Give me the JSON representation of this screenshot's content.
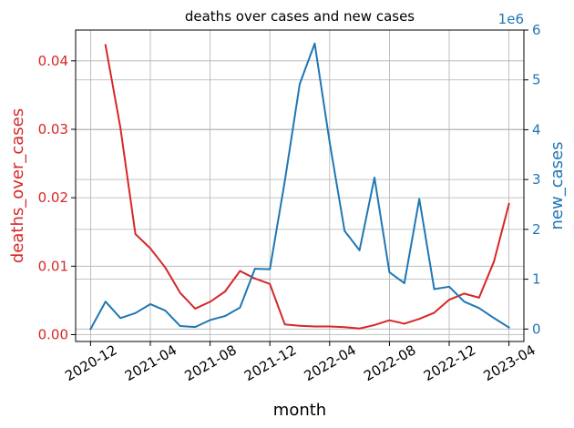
{
  "chart_data": {
    "type": "line",
    "title": "deaths over cases and new cases",
    "xlabel": "month",
    "x_tick_labels": [
      "2020-12",
      "2021-04",
      "2021-08",
      "2021-12",
      "2022-04",
      "2022-08",
      "2022-12",
      "2023-04"
    ],
    "x_tick_values": [
      "2020-12",
      "2021-04",
      "2021-08",
      "2021-12",
      "2022-04",
      "2022-08",
      "2022-12",
      "2023-04"
    ],
    "x_range": [
      "2020-11",
      "2023-05"
    ],
    "grid": true,
    "y_left": {
      "label": "deaths_over_cases",
      "color": "#d62728",
      "ylim": [
        -0.001,
        0.0445
      ],
      "ticks": [
        0.0,
        0.01,
        0.02,
        0.03,
        0.04
      ],
      "tick_labels": [
        "0.00",
        "0.01",
        "0.02",
        "0.03",
        "0.04"
      ]
    },
    "y_right": {
      "label": "new_cases",
      "color": "#1f77b4",
      "ylim": [
        -0.25,
        6.0
      ],
      "ticks": [
        0,
        1,
        2,
        3,
        4,
        5,
        6
      ],
      "tick_labels": [
        "0",
        "1",
        "2",
        "3",
        "4",
        "5",
        "6"
      ],
      "offset_label": "1e6"
    },
    "series": [
      {
        "axis": "left",
        "color": "#d62728",
        "points": [
          [
            "2021-01",
            0.0423
          ],
          [
            "2021-02",
            0.0302
          ],
          [
            "2021-03",
            0.0147
          ],
          [
            "2021-04",
            0.0126
          ],
          [
            "2021-05",
            0.0098
          ],
          [
            "2021-06",
            0.0061
          ],
          [
            "2021-07",
            0.0038
          ],
          [
            "2021-08",
            0.0048
          ],
          [
            "2021-09",
            0.0063
          ],
          [
            "2021-10",
            0.0093
          ],
          [
            "2021-11",
            0.0082
          ],
          [
            "2021-12",
            0.0074
          ],
          [
            "2022-01",
            0.0015
          ],
          [
            "2022-02",
            0.0013
          ],
          [
            "2022-03",
            0.0012
          ],
          [
            "2022-04",
            0.0012
          ],
          [
            "2022-05",
            0.0011
          ],
          [
            "2022-06",
            0.0009
          ],
          [
            "2022-07",
            0.0014
          ],
          [
            "2022-08",
            0.0021
          ],
          [
            "2022-09",
            0.0016
          ],
          [
            "2022-10",
            0.0023
          ],
          [
            "2022-11",
            0.0032
          ],
          [
            "2022-12",
            0.0051
          ],
          [
            "2023-01",
            0.006
          ],
          [
            "2023-02",
            0.0054
          ],
          [
            "2023-03",
            0.0107
          ],
          [
            "2023-04",
            0.0191
          ]
        ]
      },
      {
        "axis": "right",
        "color": "#1f77b4",
        "points": [
          [
            "2020-12",
            0.0
          ],
          [
            "2021-01",
            0.55
          ],
          [
            "2021-02",
            0.22
          ],
          [
            "2021-03",
            0.32
          ],
          [
            "2021-04",
            0.5
          ],
          [
            "2021-05",
            0.37
          ],
          [
            "2021-06",
            0.06
          ],
          [
            "2021-07",
            0.04
          ],
          [
            "2021-08",
            0.18
          ],
          [
            "2021-09",
            0.26
          ],
          [
            "2021-10",
            0.43
          ],
          [
            "2021-11",
            1.21
          ],
          [
            "2021-12",
            1.2
          ],
          [
            "2022-01",
            2.97
          ],
          [
            "2022-02",
            4.92
          ],
          [
            "2022-03",
            5.73
          ],
          [
            "2022-04",
            3.75
          ],
          [
            "2022-05",
            1.97
          ],
          [
            "2022-06",
            1.58
          ],
          [
            "2022-07",
            3.04
          ],
          [
            "2022-08",
            1.14
          ],
          [
            "2022-09",
            0.92
          ],
          [
            "2022-10",
            2.61
          ],
          [
            "2022-11",
            0.8
          ],
          [
            "2022-12",
            0.85
          ],
          [
            "2023-01",
            0.55
          ],
          [
            "2023-02",
            0.42
          ],
          [
            "2023-03",
            0.22
          ],
          [
            "2023-04",
            0.03
          ]
        ]
      }
    ]
  }
}
